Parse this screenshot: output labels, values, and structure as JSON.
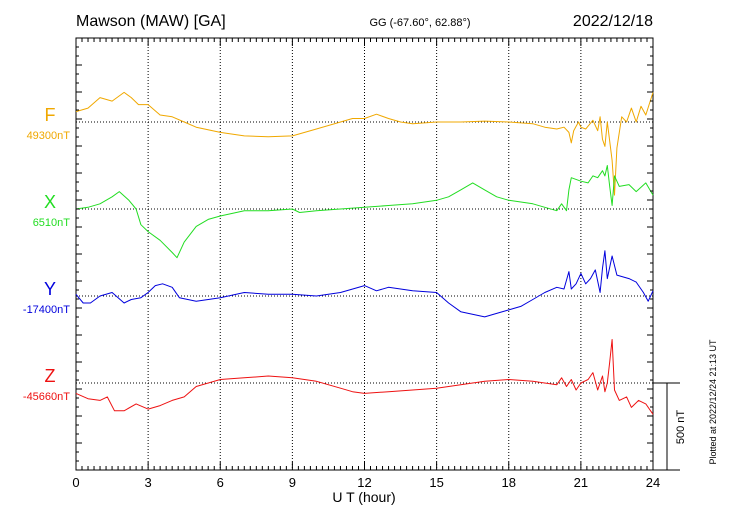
{
  "header": {
    "station": "Mawson (MAW)  [GA]",
    "coords": "GG (-67.60°,  62.88°)",
    "date": "2022/12/18"
  },
  "footer": {
    "plotted": "Plotted at 2022/12/24 21:13 UT"
  },
  "chart_data": {
    "type": "line",
    "xlabel": "U T (hour)",
    "xlim": [
      0,
      24
    ],
    "xticks": [
      0,
      3,
      6,
      9,
      12,
      15,
      18,
      21,
      24
    ],
    "grid": true,
    "scale_bar": {
      "value": 500,
      "label": "500 nT"
    },
    "series": [
      {
        "name": "F",
        "baseline_label": "49300nT",
        "baseline": 49300,
        "color": "#f0a800",
        "points": [
          [
            0,
            49360
          ],
          [
            0.5,
            49380
          ],
          [
            1,
            49440
          ],
          [
            1.5,
            49420
          ],
          [
            2,
            49470
          ],
          [
            2.3,
            49440
          ],
          [
            2.6,
            49400
          ],
          [
            3,
            49400
          ],
          [
            3.5,
            49340
          ],
          [
            4,
            49330
          ],
          [
            4.5,
            49300
          ],
          [
            5,
            49270
          ],
          [
            6,
            49240
          ],
          [
            7,
            49220
          ],
          [
            8,
            49215
          ],
          [
            9,
            49220
          ],
          [
            10,
            49260
          ],
          [
            11,
            49300
          ],
          [
            11.5,
            49320
          ],
          [
            12,
            49320
          ],
          [
            12.5,
            49345
          ],
          [
            13,
            49320
          ],
          [
            13.5,
            49300
          ],
          [
            14,
            49290
          ],
          [
            15,
            49300
          ],
          [
            16,
            49300
          ],
          [
            17,
            49305
          ],
          [
            18,
            49300
          ],
          [
            19,
            49290
          ],
          [
            19.5,
            49270
          ],
          [
            20,
            49260
          ],
          [
            20.3,
            49270
          ],
          [
            20.5,
            49240
          ],
          [
            20.6,
            49180
          ],
          [
            20.7,
            49250
          ],
          [
            20.9,
            49300
          ],
          [
            21,
            49270
          ],
          [
            21.2,
            49260
          ],
          [
            21.5,
            49310
          ],
          [
            21.7,
            49250
          ],
          [
            21.8,
            49330
          ],
          [
            21.9,
            49200
          ],
          [
            22,
            49160
          ],
          [
            22.1,
            49300
          ],
          [
            22.3,
            49080
          ],
          [
            22.4,
            48880
          ],
          [
            22.5,
            49150
          ],
          [
            22.7,
            49330
          ],
          [
            22.9,
            49300
          ],
          [
            23.1,
            49380
          ],
          [
            23.3,
            49300
          ],
          [
            23.5,
            49390
          ],
          [
            23.7,
            49340
          ],
          [
            24,
            49470
          ]
        ]
      },
      {
        "name": "X",
        "baseline_label": "6510nT",
        "baseline": 6510,
        "color": "#22dd22",
        "points": [
          [
            0,
            6510
          ],
          [
            0.5,
            6520
          ],
          [
            1,
            6540
          ],
          [
            1.5,
            6580
          ],
          [
            1.8,
            6610
          ],
          [
            2.2,
            6560
          ],
          [
            2.5,
            6510
          ],
          [
            2.7,
            6420
          ],
          [
            3,
            6380
          ],
          [
            3.5,
            6330
          ],
          [
            4,
            6260
          ],
          [
            4.2,
            6230
          ],
          [
            4.5,
            6320
          ],
          [
            5,
            6410
          ],
          [
            5.5,
            6450
          ],
          [
            6,
            6470
          ],
          [
            7,
            6500
          ],
          [
            8,
            6500
          ],
          [
            9,
            6510
          ],
          [
            9.3,
            6490
          ],
          [
            10,
            6500
          ],
          [
            11,
            6510
          ],
          [
            12,
            6520
          ],
          [
            13,
            6530
          ],
          [
            14,
            6540
          ],
          [
            15,
            6560
          ],
          [
            15.5,
            6580
          ],
          [
            16,
            6620
          ],
          [
            16.5,
            6660
          ],
          [
            17,
            6620
          ],
          [
            17.5,
            6580
          ],
          [
            18,
            6560
          ],
          [
            19,
            6540
          ],
          [
            19.5,
            6520
          ],
          [
            20,
            6500
          ],
          [
            20.2,
            6540
          ],
          [
            20.4,
            6500
          ],
          [
            20.5,
            6620
          ],
          [
            20.6,
            6690
          ],
          [
            21,
            6670
          ],
          [
            21.3,
            6660
          ],
          [
            21.5,
            6700
          ],
          [
            21.7,
            6690
          ],
          [
            21.9,
            6730
          ],
          [
            22,
            6700
          ],
          [
            22.1,
            6760
          ],
          [
            22.2,
            6640
          ],
          [
            22.3,
            6530
          ],
          [
            22.4,
            6700
          ],
          [
            22.6,
            6640
          ],
          [
            23,
            6650
          ],
          [
            23.3,
            6610
          ],
          [
            23.7,
            6660
          ],
          [
            24,
            6590
          ]
        ]
      },
      {
        "name": "Y",
        "baseline_label": "-17400nT",
        "baseline": -17400,
        "color": "#0000dd",
        "points": [
          [
            0,
            -17390
          ],
          [
            0.3,
            -17440
          ],
          [
            0.6,
            -17440
          ],
          [
            1,
            -17400
          ],
          [
            1.5,
            -17380
          ],
          [
            2,
            -17440
          ],
          [
            2.3,
            -17420
          ],
          [
            2.7,
            -17410
          ],
          [
            3,
            -17380
          ],
          [
            3.3,
            -17340
          ],
          [
            3.6,
            -17330
          ],
          [
            4,
            -17350
          ],
          [
            4.3,
            -17410
          ],
          [
            5,
            -17430
          ],
          [
            6,
            -17410
          ],
          [
            7,
            -17380
          ],
          [
            8,
            -17390
          ],
          [
            9,
            -17390
          ],
          [
            10,
            -17400
          ],
          [
            11,
            -17380
          ],
          [
            12,
            -17340
          ],
          [
            12.5,
            -17370
          ],
          [
            13,
            -17350
          ],
          [
            14,
            -17370
          ],
          [
            15,
            -17380
          ],
          [
            15.5,
            -17440
          ],
          [
            16,
            -17490
          ],
          [
            17,
            -17520
          ],
          [
            17.5,
            -17500
          ],
          [
            18,
            -17480
          ],
          [
            18.5,
            -17460
          ],
          [
            19,
            -17420
          ],
          [
            19.5,
            -17380
          ],
          [
            20,
            -17350
          ],
          [
            20.3,
            -17360
          ],
          [
            20.5,
            -17260
          ],
          [
            20.6,
            -17360
          ],
          [
            20.8,
            -17330
          ],
          [
            21,
            -17270
          ],
          [
            21.2,
            -17330
          ],
          [
            21.4,
            -17300
          ],
          [
            21.6,
            -17250
          ],
          [
            21.8,
            -17380
          ],
          [
            21.9,
            -17240
          ],
          [
            22,
            -17140
          ],
          [
            22.1,
            -17300
          ],
          [
            22.3,
            -17170
          ],
          [
            22.5,
            -17280
          ],
          [
            23,
            -17300
          ],
          [
            23.3,
            -17320
          ],
          [
            23.6,
            -17380
          ],
          [
            23.8,
            -17430
          ],
          [
            24,
            -17370
          ]
        ]
      },
      {
        "name": "Z",
        "baseline_label": "-45660nT",
        "baseline": -45660,
        "color": "#ee1111",
        "points": [
          [
            0,
            -45720
          ],
          [
            0.5,
            -45750
          ],
          [
            1,
            -45760
          ],
          [
            1.3,
            -45740
          ],
          [
            1.6,
            -45820
          ],
          [
            2,
            -45820
          ],
          [
            2.5,
            -45780
          ],
          [
            3,
            -45810
          ],
          [
            3.5,
            -45790
          ],
          [
            4,
            -45760
          ],
          [
            4.5,
            -45740
          ],
          [
            5,
            -45680
          ],
          [
            6,
            -45640
          ],
          [
            7,
            -45630
          ],
          [
            8,
            -45620
          ],
          [
            9,
            -45630
          ],
          [
            10,
            -45650
          ],
          [
            11,
            -45690
          ],
          [
            11.5,
            -45710
          ],
          [
            12,
            -45720
          ],
          [
            13,
            -45710
          ],
          [
            14,
            -45700
          ],
          [
            15,
            -45690
          ],
          [
            16,
            -45670
          ],
          [
            16.5,
            -45660
          ],
          [
            17,
            -45650
          ],
          [
            18,
            -45640
          ],
          [
            19,
            -45650
          ],
          [
            20,
            -45670
          ],
          [
            20.2,
            -45630
          ],
          [
            20.4,
            -45680
          ],
          [
            20.6,
            -45640
          ],
          [
            20.8,
            -45700
          ],
          [
            21,
            -45660
          ],
          [
            21.3,
            -45640
          ],
          [
            21.5,
            -45600
          ],
          [
            21.7,
            -45700
          ],
          [
            21.9,
            -45620
          ],
          [
            22,
            -45710
          ],
          [
            22.1,
            -45660
          ],
          [
            22.2,
            -45540
          ],
          [
            22.3,
            -45410
          ],
          [
            22.4,
            -45700
          ],
          [
            22.6,
            -45760
          ],
          [
            22.9,
            -45740
          ],
          [
            23.1,
            -45800
          ],
          [
            23.4,
            -45760
          ],
          [
            23.7,
            -45780
          ],
          [
            24,
            -45840
          ]
        ]
      }
    ]
  }
}
